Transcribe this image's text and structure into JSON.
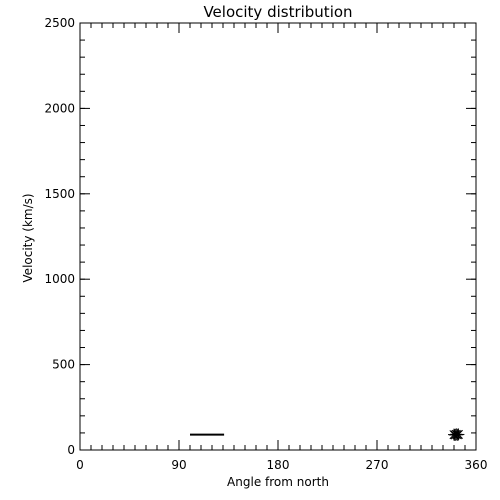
{
  "chart_data": {
    "type": "scatter",
    "title": "Velocity distribution",
    "xlabel": "Angle from north",
    "ylabel": "Velocity (km/s)",
    "xlim": [
      0,
      360
    ],
    "ylim": [
      0,
      2500
    ],
    "xticks": [
      0,
      90,
      180,
      270,
      360
    ],
    "yticks": [
      0,
      500,
      1000,
      1500,
      2000,
      2500
    ],
    "x_minor_step": 10,
    "y_minor_step": 100,
    "grid": false,
    "series": [
      {
        "type": "line",
        "color": "#000000",
        "x": [
          100,
          131
        ],
        "y": [
          90,
          90
        ]
      },
      {
        "type": "scatter",
        "marker": "asterisk",
        "color": "#000000",
        "x": [
          340,
          341,
          342,
          343,
          344
        ],
        "y": [
          90,
          88,
          92,
          89,
          91
        ]
      }
    ]
  }
}
